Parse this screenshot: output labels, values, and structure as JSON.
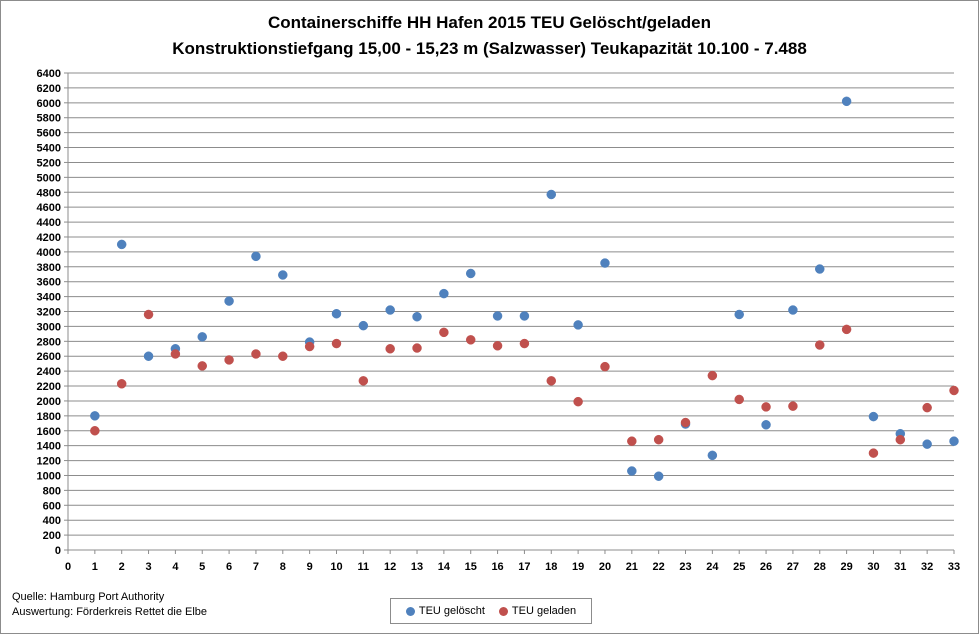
{
  "chart_data": {
    "type": "scatter",
    "title": "Containerschiffe HH Hafen 2015 TEU Gelöscht/geladen",
    "subtitle": "Konstruktionstiefgang 15,00 - 15,23 m (Salzwasser)  Teukapazität   10.100 - 7.488",
    "xlim": [
      0,
      33
    ],
    "ylim": [
      0,
      6400
    ],
    "x_ticks": [
      0,
      1,
      2,
      3,
      4,
      5,
      6,
      7,
      8,
      9,
      10,
      11,
      12,
      13,
      14,
      15,
      16,
      17,
      18,
      19,
      20,
      21,
      22,
      23,
      24,
      25,
      26,
      27,
      28,
      29,
      30,
      31,
      32,
      33
    ],
    "y_ticks": [
      0,
      200,
      400,
      600,
      800,
      1000,
      1200,
      1400,
      1600,
      1800,
      2000,
      2200,
      2400,
      2600,
      2800,
      3000,
      3200,
      3400,
      3600,
      3800,
      4000,
      4200,
      4400,
      4600,
      4800,
      5000,
      5200,
      5400,
      5600,
      5800,
      6000,
      6200,
      6400
    ],
    "grid": true,
    "legend_position": "bottom",
    "series": [
      {
        "name": "TEU gelöscht",
        "color": "#4f81bd",
        "x": [
          1,
          2,
          3,
          4,
          5,
          6,
          7,
          8,
          9,
          10,
          11,
          12,
          13,
          14,
          15,
          16,
          17,
          18,
          19,
          20,
          21,
          22,
          23,
          24,
          25,
          26,
          27,
          28,
          29,
          30,
          31,
          32,
          33
        ],
        "y": [
          1800,
          4100,
          2600,
          2700,
          2860,
          3340,
          3940,
          3690,
          2790,
          3170,
          3010,
          3220,
          3130,
          3440,
          3710,
          3140,
          3140,
          4770,
          3020,
          3850,
          1060,
          990,
          1690,
          1270,
          3160,
          1680,
          3220,
          3770,
          6020,
          1790,
          1560,
          1420,
          1460
        ]
      },
      {
        "name": "TEU geladen",
        "color": "#c0504d",
        "x": [
          1,
          2,
          3,
          4,
          5,
          6,
          7,
          8,
          9,
          10,
          11,
          12,
          13,
          14,
          15,
          16,
          17,
          18,
          19,
          20,
          21,
          22,
          23,
          24,
          25,
          26,
          27,
          28,
          29,
          30,
          31,
          32,
          33
        ],
        "y": [
          1600,
          2230,
          3160,
          2630,
          2470,
          2550,
          2630,
          2600,
          2730,
          2770,
          2270,
          2700,
          2710,
          2920,
          2820,
          2740,
          2770,
          2270,
          1990,
          2460,
          1460,
          1480,
          1710,
          2340,
          2020,
          1920,
          1930,
          2750,
          2960,
          1300,
          1480,
          1910,
          2140
        ]
      }
    ]
  },
  "notes": {
    "source": "Quelle: Hamburg Port Authority",
    "analysis": "Auswertung: Förderkreis Rettet die Elbe"
  }
}
